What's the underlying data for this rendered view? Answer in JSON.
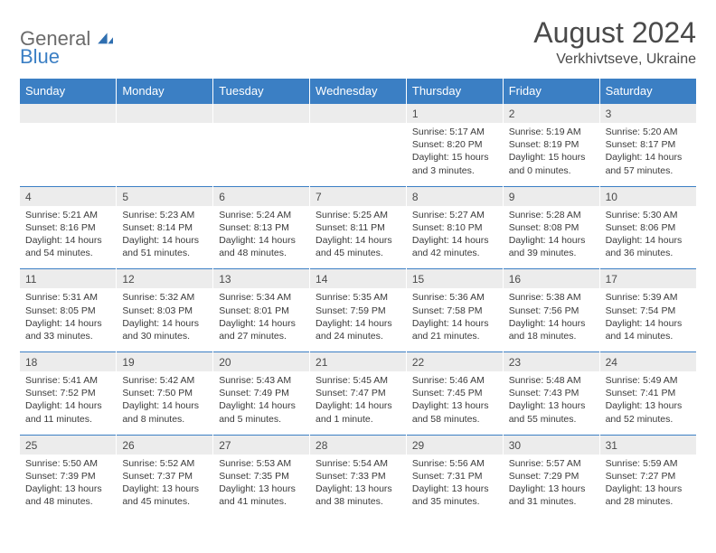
{
  "brand": {
    "part1": "General",
    "part2": "Blue"
  },
  "title": "August 2024",
  "location": "Verkhivtseve, Ukraine",
  "day_headers": [
    "Sunday",
    "Monday",
    "Tuesday",
    "Wednesday",
    "Thursday",
    "Friday",
    "Saturday"
  ],
  "colors": {
    "header_bg": "#3b7fc4",
    "header_text": "#ffffff",
    "daynum_bg": "#ececec",
    "text": "#4a4a4a"
  },
  "weeks": [
    [
      {
        "num": "",
        "lines": []
      },
      {
        "num": "",
        "lines": []
      },
      {
        "num": "",
        "lines": []
      },
      {
        "num": "",
        "lines": []
      },
      {
        "num": "1",
        "lines": [
          "Sunrise: 5:17 AM",
          "Sunset: 8:20 PM",
          "Daylight: 15 hours and 3 minutes."
        ]
      },
      {
        "num": "2",
        "lines": [
          "Sunrise: 5:19 AM",
          "Sunset: 8:19 PM",
          "Daylight: 15 hours and 0 minutes."
        ]
      },
      {
        "num": "3",
        "lines": [
          "Sunrise: 5:20 AM",
          "Sunset: 8:17 PM",
          "Daylight: 14 hours and 57 minutes."
        ]
      }
    ],
    [
      {
        "num": "4",
        "lines": [
          "Sunrise: 5:21 AM",
          "Sunset: 8:16 PM",
          "Daylight: 14 hours and 54 minutes."
        ]
      },
      {
        "num": "5",
        "lines": [
          "Sunrise: 5:23 AM",
          "Sunset: 8:14 PM",
          "Daylight: 14 hours and 51 minutes."
        ]
      },
      {
        "num": "6",
        "lines": [
          "Sunrise: 5:24 AM",
          "Sunset: 8:13 PM",
          "Daylight: 14 hours and 48 minutes."
        ]
      },
      {
        "num": "7",
        "lines": [
          "Sunrise: 5:25 AM",
          "Sunset: 8:11 PM",
          "Daylight: 14 hours and 45 minutes."
        ]
      },
      {
        "num": "8",
        "lines": [
          "Sunrise: 5:27 AM",
          "Sunset: 8:10 PM",
          "Daylight: 14 hours and 42 minutes."
        ]
      },
      {
        "num": "9",
        "lines": [
          "Sunrise: 5:28 AM",
          "Sunset: 8:08 PM",
          "Daylight: 14 hours and 39 minutes."
        ]
      },
      {
        "num": "10",
        "lines": [
          "Sunrise: 5:30 AM",
          "Sunset: 8:06 PM",
          "Daylight: 14 hours and 36 minutes."
        ]
      }
    ],
    [
      {
        "num": "11",
        "lines": [
          "Sunrise: 5:31 AM",
          "Sunset: 8:05 PM",
          "Daylight: 14 hours and 33 minutes."
        ]
      },
      {
        "num": "12",
        "lines": [
          "Sunrise: 5:32 AM",
          "Sunset: 8:03 PM",
          "Daylight: 14 hours and 30 minutes."
        ]
      },
      {
        "num": "13",
        "lines": [
          "Sunrise: 5:34 AM",
          "Sunset: 8:01 PM",
          "Daylight: 14 hours and 27 minutes."
        ]
      },
      {
        "num": "14",
        "lines": [
          "Sunrise: 5:35 AM",
          "Sunset: 7:59 PM",
          "Daylight: 14 hours and 24 minutes."
        ]
      },
      {
        "num": "15",
        "lines": [
          "Sunrise: 5:36 AM",
          "Sunset: 7:58 PM",
          "Daylight: 14 hours and 21 minutes."
        ]
      },
      {
        "num": "16",
        "lines": [
          "Sunrise: 5:38 AM",
          "Sunset: 7:56 PM",
          "Daylight: 14 hours and 18 minutes."
        ]
      },
      {
        "num": "17",
        "lines": [
          "Sunrise: 5:39 AM",
          "Sunset: 7:54 PM",
          "Daylight: 14 hours and 14 minutes."
        ]
      }
    ],
    [
      {
        "num": "18",
        "lines": [
          "Sunrise: 5:41 AM",
          "Sunset: 7:52 PM",
          "Daylight: 14 hours and 11 minutes."
        ]
      },
      {
        "num": "19",
        "lines": [
          "Sunrise: 5:42 AM",
          "Sunset: 7:50 PM",
          "Daylight: 14 hours and 8 minutes."
        ]
      },
      {
        "num": "20",
        "lines": [
          "Sunrise: 5:43 AM",
          "Sunset: 7:49 PM",
          "Daylight: 14 hours and 5 minutes."
        ]
      },
      {
        "num": "21",
        "lines": [
          "Sunrise: 5:45 AM",
          "Sunset: 7:47 PM",
          "Daylight: 14 hours and 1 minute."
        ]
      },
      {
        "num": "22",
        "lines": [
          "Sunrise: 5:46 AM",
          "Sunset: 7:45 PM",
          "Daylight: 13 hours and 58 minutes."
        ]
      },
      {
        "num": "23",
        "lines": [
          "Sunrise: 5:48 AM",
          "Sunset: 7:43 PM",
          "Daylight: 13 hours and 55 minutes."
        ]
      },
      {
        "num": "24",
        "lines": [
          "Sunrise: 5:49 AM",
          "Sunset: 7:41 PM",
          "Daylight: 13 hours and 52 minutes."
        ]
      }
    ],
    [
      {
        "num": "25",
        "lines": [
          "Sunrise: 5:50 AM",
          "Sunset: 7:39 PM",
          "Daylight: 13 hours and 48 minutes."
        ]
      },
      {
        "num": "26",
        "lines": [
          "Sunrise: 5:52 AM",
          "Sunset: 7:37 PM",
          "Daylight: 13 hours and 45 minutes."
        ]
      },
      {
        "num": "27",
        "lines": [
          "Sunrise: 5:53 AM",
          "Sunset: 7:35 PM",
          "Daylight: 13 hours and 41 minutes."
        ]
      },
      {
        "num": "28",
        "lines": [
          "Sunrise: 5:54 AM",
          "Sunset: 7:33 PM",
          "Daylight: 13 hours and 38 minutes."
        ]
      },
      {
        "num": "29",
        "lines": [
          "Sunrise: 5:56 AM",
          "Sunset: 7:31 PM",
          "Daylight: 13 hours and 35 minutes."
        ]
      },
      {
        "num": "30",
        "lines": [
          "Sunrise: 5:57 AM",
          "Sunset: 7:29 PM",
          "Daylight: 13 hours and 31 minutes."
        ]
      },
      {
        "num": "31",
        "lines": [
          "Sunrise: 5:59 AM",
          "Sunset: 7:27 PM",
          "Daylight: 13 hours and 28 minutes."
        ]
      }
    ]
  ]
}
